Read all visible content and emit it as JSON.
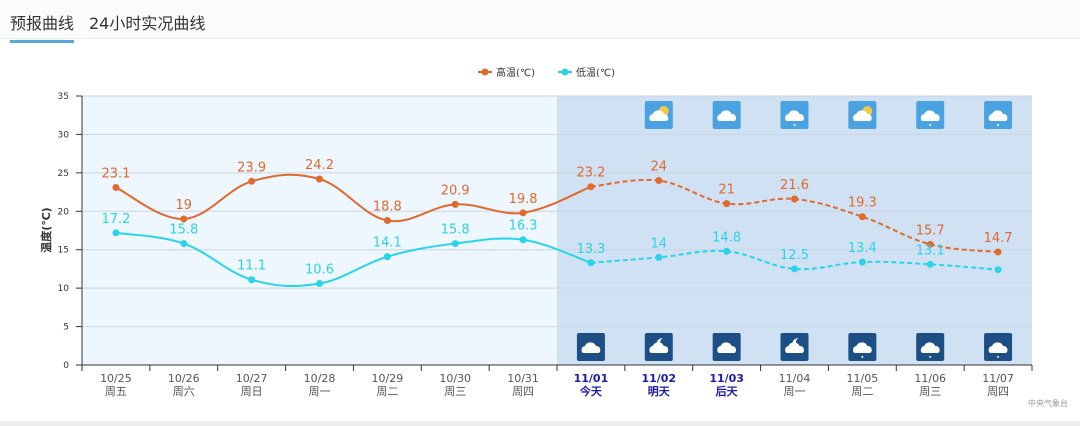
{
  "tabs": [
    {
      "label": "预报曲线",
      "active": true
    },
    {
      "label": "24小时实况曲线",
      "active": false
    }
  ],
  "source": "中央气象台",
  "chart_data": {
    "type": "line",
    "ylabel": "温度(℃)",
    "ylim": [
      0,
      35
    ],
    "yticks": [
      0,
      5,
      10,
      15,
      20,
      25,
      30,
      35
    ],
    "legend_position": "top-center",
    "categories": [
      "10/25",
      "10/26",
      "10/27",
      "10/28",
      "10/29",
      "10/30",
      "10/31",
      "11/01",
      "11/02",
      "11/03",
      "11/04",
      "11/05",
      "11/06",
      "11/07"
    ],
    "weekdays": [
      "周五",
      "周六",
      "周日",
      "周一",
      "周二",
      "周三",
      "周四",
      "今天",
      "明天",
      "后天",
      "周一",
      "周二",
      "周三",
      "周四"
    ],
    "highlight_days": [
      7,
      8,
      9
    ],
    "forecast_start_index": 7,
    "series": [
      {
        "name": "高温(℃)",
        "color": "#e0692e",
        "values": [
          23.1,
          19,
          23.9,
          24.2,
          18.8,
          20.9,
          19.8,
          23.2,
          24,
          21,
          21.6,
          19.3,
          15.7,
          14.7
        ]
      },
      {
        "name": "低温(℃)",
        "color": "#2ad4e8",
        "values": [
          17.2,
          15.8,
          11.1,
          10.6,
          14.1,
          15.8,
          16.3,
          13.3,
          14,
          14.8,
          12.5,
          13.4,
          13.1,
          12.4
        ]
      }
    ],
    "value_labels": {
      "high": [
        "23.1",
        "19",
        "23.9",
        "24.2",
        "18.8",
        "20.9",
        "19.8",
        "23.2",
        "24",
        "21",
        "21.6",
        "19.3",
        "15.7",
        "14.7"
      ],
      "low": [
        "17.2",
        "15.8",
        "11.1",
        "10.6",
        "14.1",
        "15.8",
        "16.3",
        "13.3",
        "14",
        "14.8",
        "12.5",
        "13.4",
        "13.1",
        ""
      ]
    },
    "day_icons": [
      null,
      null,
      null,
      null,
      null,
      null,
      null,
      null,
      "partly-cloudy",
      "cloudy",
      "light-rain",
      "partly-cloudy",
      "light-rain",
      "light-rain"
    ],
    "night_icons": [
      null,
      null,
      null,
      null,
      null,
      null,
      null,
      "cloudy",
      "cloudy-night",
      "cloudy",
      "cloudy-night",
      "light-rain",
      "light-rain",
      "light-rain"
    ]
  }
}
